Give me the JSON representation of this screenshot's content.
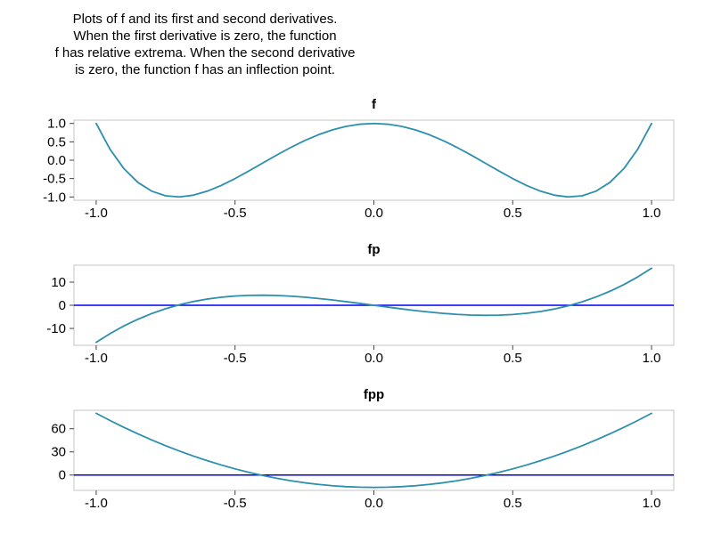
{
  "caption": {
    "lines": [
      "Plots of f and its first and second derivatives.",
      "When the first derivative is zero, the function",
      "f has relative extrema. When the second derivative",
      "is zero, the function f has an inflection point."
    ]
  },
  "colors": {
    "curve": "#2b8fad",
    "zero_line": "#0000ee",
    "panel_border": "#c4c4c4",
    "tick": "#444444",
    "text": "#000000"
  },
  "chart_data": [
    {
      "type": "line",
      "title": "f",
      "x": [
        -1,
        -0.95,
        -0.9,
        -0.85,
        -0.8,
        -0.75,
        -0.7,
        -0.65,
        -0.6,
        -0.55,
        -0.5,
        -0.45,
        -0.4,
        -0.35,
        -0.3,
        -0.25,
        -0.2,
        -0.15,
        -0.1,
        -0.05,
        0,
        0.05,
        0.1,
        0.15,
        0.2,
        0.25,
        0.3,
        0.35,
        0.4,
        0.45,
        0.5,
        0.55,
        0.6,
        0.65,
        0.7,
        0.75,
        0.8,
        0.85,
        0.9,
        0.95,
        1
      ],
      "series": [
        {
          "name": "f",
          "color": "#2b8fad",
          "y": [
            1,
            0.296,
            -0.231,
            -0.604,
            -0.843,
            -0.969,
            -0.999,
            -0.952,
            -0.843,
            -0.688,
            -0.5,
            -0.292,
            -0.075,
            0.14,
            0.345,
            0.531,
            0.693,
            0.824,
            0.921,
            0.98,
            1,
            0.98,
            0.921,
            0.824,
            0.693,
            0.531,
            0.345,
            0.14,
            -0.075,
            -0.292,
            -0.5,
            -0.688,
            -0.843,
            -0.952,
            -0.999,
            -0.969,
            -0.843,
            -0.604,
            -0.231,
            0.296,
            1
          ]
        }
      ],
      "hline": null,
      "xlim": [
        -1.08,
        1.08
      ],
      "ylim": [
        -1.09,
        1.09
      ],
      "xticks": [
        -1.0,
        -0.5,
        0.0,
        0.5,
        1.0
      ],
      "xtick_labels": [
        "-1.0",
        "-0.5",
        "0.0",
        "0.5",
        "1.0"
      ],
      "yticks": [
        1.0,
        0.5,
        0.0,
        -0.5,
        -1.0
      ],
      "ytick_labels": [
        "1.0",
        "0.5",
        "0.0",
        "-0.5",
        "-1.0"
      ],
      "grid": false,
      "legend": false
    },
    {
      "type": "line",
      "title": "fp",
      "x": [
        -1,
        -0.95,
        -0.9,
        -0.85,
        -0.8,
        -0.75,
        -0.7,
        -0.65,
        -0.6,
        -0.55,
        -0.5,
        -0.45,
        -0.4,
        -0.35,
        -0.3,
        -0.25,
        -0.2,
        -0.15,
        -0.1,
        -0.05,
        0,
        0.05,
        0.1,
        0.15,
        0.2,
        0.25,
        0.3,
        0.35,
        0.4,
        0.45,
        0.5,
        0.55,
        0.6,
        0.65,
        0.7,
        0.75,
        0.8,
        0.85,
        0.9,
        0.95,
        1
      ],
      "series": [
        {
          "name": "fp",
          "color": "#2b8fad",
          "y": [
            -16,
            -12.236,
            -8.928,
            -6.052,
            -3.584,
            -1.5,
            0.224,
            1.612,
            2.688,
            3.476,
            4,
            4.284,
            4.352,
            4.228,
            3.936,
            3.5,
            2.944,
            2.292,
            1.568,
            0.796,
            0,
            -0.796,
            -1.568,
            -2.292,
            -2.944,
            -3.5,
            -3.936,
            -4.228,
            -4.352,
            -4.284,
            -4,
            -3.476,
            -2.688,
            -1.612,
            -0.224,
            1.5,
            3.584,
            6.052,
            8.928,
            12.236,
            16
          ]
        }
      ],
      "hline": {
        "y": 0,
        "color": "#0000ee"
      },
      "xlim": [
        -1.08,
        1.08
      ],
      "ylim": [
        -17.3,
        17.3
      ],
      "xticks": [
        -1.0,
        -0.5,
        0.0,
        0.5,
        1.0
      ],
      "xtick_labels": [
        "-1.0",
        "-0.5",
        "0.0",
        "0.5",
        "1.0"
      ],
      "yticks": [
        10,
        0,
        -10
      ],
      "ytick_labels": [
        "10",
        "0",
        "-10"
      ],
      "grid": false,
      "legend": false
    },
    {
      "type": "line",
      "title": "fpp",
      "x": [
        -1,
        -0.95,
        -0.9,
        -0.85,
        -0.8,
        -0.75,
        -0.7,
        -0.65,
        -0.6,
        -0.55,
        -0.5,
        -0.45,
        -0.4,
        -0.35,
        -0.3,
        -0.25,
        -0.2,
        -0.15,
        -0.1,
        -0.05,
        0,
        0.05,
        0.1,
        0.15,
        0.2,
        0.25,
        0.3,
        0.35,
        0.4,
        0.45,
        0.5,
        0.55,
        0.6,
        0.65,
        0.7,
        0.75,
        0.8,
        0.85,
        0.9,
        0.95,
        1
      ],
      "series": [
        {
          "name": "fpp",
          "color": "#2b8fad",
          "y": [
            80,
            70.64,
            61.76,
            53.36,
            45.44,
            38,
            31.04,
            24.56,
            18.56,
            13.04,
            8,
            3.44,
            -0.64,
            -4.24,
            -7.36,
            -10,
            -12.16,
            -13.84,
            -15.04,
            -15.76,
            -16,
            -15.76,
            -15.04,
            -13.84,
            -12.16,
            -10,
            -7.36,
            -4.24,
            -0.64,
            3.44,
            8,
            13.04,
            18.56,
            24.56,
            31.04,
            38,
            45.44,
            53.36,
            61.76,
            70.64,
            80
          ]
        }
      ],
      "hline": {
        "y": 0,
        "color": "#0000ee"
      },
      "xlim": [
        -1.08,
        1.08
      ],
      "ylim": [
        -19.9,
        83.9
      ],
      "xticks": [
        -1.0,
        -0.5,
        0.0,
        0.5,
        1.0
      ],
      "xtick_labels": [
        "-1.0",
        "-0.5",
        "0.0",
        "0.5",
        "1.0"
      ],
      "yticks": [
        60,
        30,
        0
      ],
      "ytick_labels": [
        "60",
        "30",
        "0"
      ],
      "grid": false,
      "legend": false
    }
  ]
}
